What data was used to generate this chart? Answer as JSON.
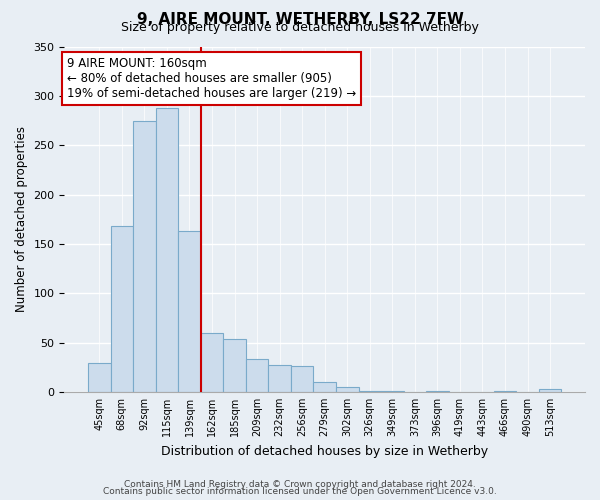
{
  "title": "9, AIRE MOUNT, WETHERBY, LS22 7FW",
  "subtitle": "Size of property relative to detached houses in Wetherby",
  "xlabel": "Distribution of detached houses by size in Wetherby",
  "ylabel": "Number of detached properties",
  "bar_labels": [
    "45sqm",
    "68sqm",
    "92sqm",
    "115sqm",
    "139sqm",
    "162sqm",
    "185sqm",
    "209sqm",
    "232sqm",
    "256sqm",
    "279sqm",
    "302sqm",
    "326sqm",
    "349sqm",
    "373sqm",
    "396sqm",
    "419sqm",
    "443sqm",
    "466sqm",
    "490sqm",
    "513sqm"
  ],
  "bar_values": [
    29,
    168,
    275,
    288,
    163,
    60,
    54,
    33,
    27,
    26,
    10,
    5,
    1,
    1,
    0,
    1,
    0,
    0,
    1,
    0,
    3
  ],
  "bar_color": "#ccdcec",
  "bar_edge_color": "#7aaaca",
  "vline_color": "#cc0000",
  "annotation_text": "9 AIRE MOUNT: 160sqm\n← 80% of detached houses are smaller (905)\n19% of semi-detached houses are larger (219) →",
  "annotation_box_edgecolor": "#cc0000",
  "annotation_box_facecolor": "#ffffff",
  "ylim": [
    0,
    350
  ],
  "yticks": [
    0,
    50,
    100,
    150,
    200,
    250,
    300,
    350
  ],
  "footnote1": "Contains HM Land Registry data © Crown copyright and database right 2024.",
  "footnote2": "Contains public sector information licensed under the Open Government Licence v3.0.",
  "background_color": "#e8eef4"
}
